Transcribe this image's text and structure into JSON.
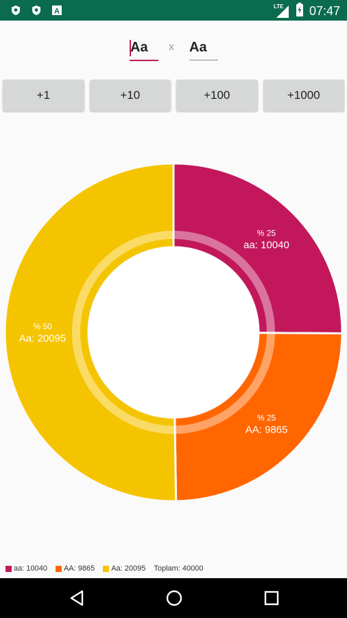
{
  "status_bar": {
    "time": "07:47",
    "signal_label": "LTE",
    "icons": [
      "shield-icon",
      "shield-icon",
      "a-box-icon",
      "signal-icon",
      "battery-charging-icon"
    ]
  },
  "factors": {
    "left": "Aa",
    "times_symbol": "x",
    "right": "Aa"
  },
  "buttons": [
    "+1",
    "+10",
    "+100",
    "+1000"
  ],
  "chart_data": {
    "type": "pie",
    "donut": true,
    "slices": [
      {
        "name": "aa",
        "value": 10040,
        "percent_label": "% 25",
        "value_label": "aa: 10040",
        "color": "#c2185b"
      },
      {
        "name": "AA",
        "value": 9865,
        "percent_label": "% 25",
        "value_label": "AA: 9865",
        "color": "#ff6600"
      },
      {
        "name": "Aa",
        "value": 20095,
        "percent_label": "% 50",
        "value_label": "Aa: 20095",
        "color": "#f5c400"
      }
    ],
    "legend": {
      "items": [
        {
          "label": "aa: 10040",
          "color": "#c2185b"
        },
        {
          "label": "AA: 9865",
          "color": "#ff6600"
        },
        {
          "label": "Aa: 20095",
          "color": "#f5c400"
        }
      ],
      "total": "Toplam: 40000",
      "placement": "bottom-left"
    }
  },
  "colors": {
    "status_bar": "#0a6b4f",
    "accent": "#c2185b",
    "button_bg": "#d6d7d7"
  }
}
